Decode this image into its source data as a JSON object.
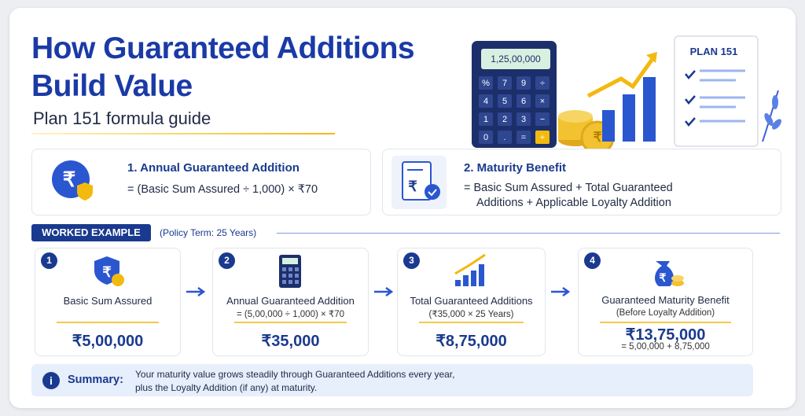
{
  "header": {
    "title_lines": [
      "How Guaranteed Additions",
      "Build Value"
    ],
    "subtitle": "Plan 151 formula guide"
  },
  "currency_symbol": "₹",
  "illustration": {
    "calculator_display": "1,25,00,000",
    "calculator_keys": [
      "%",
      "7",
      "9",
      "÷",
      "4",
      "5",
      "6",
      "×",
      "1",
      "2",
      "3",
      "−",
      "0",
      ".",
      "=",
      "+"
    ],
    "document_label": "PLAN 151"
  },
  "formulas": [
    {
      "title": "1. Annual Guaranteed Addition",
      "lines": [
        "= (Basic Sum Assured ÷ 1,000) × ₹70"
      ]
    },
    {
      "title": "2. Maturity Benefit",
      "lines": [
        "= Basic Sum Assured + Total Guaranteed",
        "Additions + Applicable Loyalty Addition"
      ]
    }
  ],
  "worked_example": {
    "label": "WORKED EXAMPLE",
    "note": "(Policy Term: 25 Years)",
    "steps": [
      {
        "number": "1",
        "label": "Basic Sum Assured",
        "value": "₹5,00,000"
      },
      {
        "number": "2",
        "label": "Annual Guaranteed Addition",
        "detail": "= (5,00,000 ÷ 1,000) × ₹70",
        "value": "₹35,000"
      },
      {
        "number": "3",
        "label": "Total Guaranteed Additions",
        "detail": "(₹35,000 × 25 Years)",
        "value": "₹8,75,000"
      },
      {
        "number": "4",
        "label": "Guaranteed Maturity Benefit",
        "detail": "(Before Loyalty Addition)",
        "value": "₹13,75,000",
        "note": "= 5,00,000 + 8,75,000"
      }
    ]
  },
  "summary": {
    "icon": "i",
    "label": "Summary:",
    "lines": [
      "Your maturity value grows steadily through Guaranteed Additions every year,",
      "plus the Loyalty Addition (if any) at maturity."
    ]
  }
}
